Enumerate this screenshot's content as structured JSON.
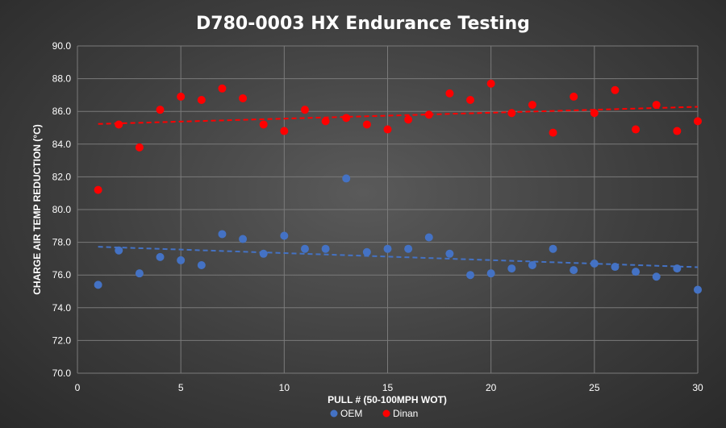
{
  "chart_data": {
    "type": "scatter",
    "title": "D780-0003 HX Endurance Testing",
    "xlabel": "PULL # (50-100MPH WOT)",
    "ylabel": "CHARGE AIR TEMP REDUCTION (°C)",
    "xlim": [
      0,
      30
    ],
    "ylim": [
      70,
      90
    ],
    "x_ticks": [
      0,
      5,
      10,
      15,
      20,
      25,
      30
    ],
    "y_ticks": [
      "70.0",
      "72.0",
      "74.0",
      "76.0",
      "78.0",
      "80.0",
      "82.0",
      "84.0",
      "86.0",
      "88.0",
      "90.0"
    ],
    "grid": true,
    "legend_position": "bottom",
    "trendlines": "linear, dashed",
    "series": [
      {
        "name": "OEM",
        "color": "#4472c4",
        "x": [
          1,
          2,
          3,
          4,
          5,
          6,
          7,
          8,
          9,
          10,
          11,
          12,
          13,
          14,
          15,
          16,
          17,
          18,
          19,
          20,
          21,
          22,
          23,
          24,
          25,
          26,
          27,
          28,
          29,
          30
        ],
        "y": [
          75.4,
          77.5,
          76.1,
          77.1,
          76.9,
          76.6,
          78.5,
          78.2,
          77.3,
          78.4,
          77.6,
          77.6,
          81.9,
          77.4,
          77.6,
          77.6,
          78.3,
          77.3,
          76.0,
          76.1,
          76.4,
          76.6,
          77.6,
          76.3,
          76.7,
          76.5,
          76.2,
          75.9,
          76.4,
          75.1
        ]
      },
      {
        "name": "Dinan",
        "color": "#ff0000",
        "x": [
          1,
          2,
          3,
          4,
          5,
          6,
          7,
          8,
          9,
          10,
          11,
          12,
          13,
          14,
          15,
          16,
          17,
          18,
          19,
          20,
          21,
          22,
          23,
          24,
          25,
          26,
          27,
          28,
          29,
          30
        ],
        "y": [
          81.2,
          85.2,
          83.8,
          86.1,
          86.9,
          86.7,
          87.4,
          86.8,
          85.2,
          84.8,
          86.1,
          85.4,
          85.6,
          85.2,
          84.9,
          85.5,
          85.8,
          87.1,
          86.7,
          87.7,
          85.9,
          86.4,
          84.7,
          86.9,
          85.9,
          87.3,
          84.9,
          86.4,
          84.8,
          85.4
        ]
      }
    ]
  }
}
